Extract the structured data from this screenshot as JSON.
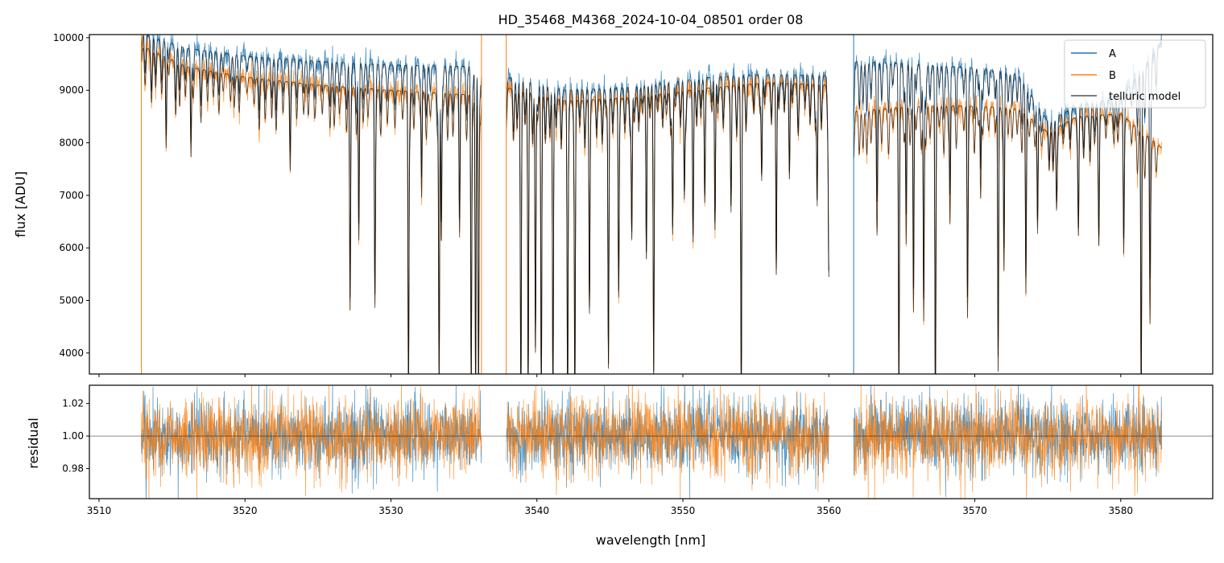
{
  "chart_data": {
    "type": "line",
    "title": "HD_35468_M4368_2024-10-04_08501  order 08",
    "xlabel": "wavelength [nm]",
    "xlim": [
      3509.34,
      3586.3
    ],
    "xticks": [
      3510,
      3520,
      3530,
      3540,
      3550,
      3560,
      3570,
      3580
    ],
    "panels": [
      {
        "name": "flux",
        "ylabel": "flux [ADU]",
        "ylim": [
          3600,
          10060
        ],
        "yticks": [
          4000,
          5000,
          6000,
          7000,
          8000,
          9000,
          10000
        ]
      },
      {
        "name": "residual",
        "ylabel": "residual",
        "ylim": [
          0.9615,
          1.0312
        ],
        "yticks": [
          0.98,
          1.0,
          1.02
        ],
        "ytick_labels": [
          "0.98",
          "1.00",
          "1.02"
        ],
        "reference_line": 1.0
      }
    ],
    "legend": {
      "placement": "top-right",
      "entries": [
        "A",
        "B",
        "telluric model"
      ]
    },
    "colors": {
      "A": "#1f77b4",
      "B": "#ff7f0e",
      "model": "#000000"
    },
    "segments": [
      [
        3512.9,
        3536.2
      ],
      [
        3537.9,
        3560.0
      ],
      [
        3561.7,
        3582.8
      ]
    ],
    "continuum_A": [
      [
        [
          3512.9,
          10080
        ],
        [
          3516,
          9800
        ],
        [
          3520,
          9650
        ],
        [
          3525,
          9550
        ],
        [
          3530,
          9480
        ],
        [
          3536.2,
          9450
        ]
      ],
      [
        [
          3537.9,
          9250
        ],
        [
          3542,
          9000
        ],
        [
          3546,
          9050
        ],
        [
          3552,
          9250
        ],
        [
          3556,
          9300
        ],
        [
          3560,
          9280
        ]
      ],
      [
        [
          3561.7,
          9550
        ],
        [
          3566,
          9500
        ],
        [
          3570,
          9420
        ],
        [
          3573,
          9300
        ],
        [
          3575,
          8400
        ],
        [
          3577,
          8700
        ],
        [
          3580,
          8850
        ],
        [
          3582.8,
          9900
        ]
      ]
    ],
    "continuum_B": [
      [
        [
          3512.9,
          9850
        ],
        [
          3516,
          9450
        ],
        [
          3520,
          9250
        ],
        [
          3525,
          9100
        ],
        [
          3530,
          9000
        ],
        [
          3536.2,
          8900
        ]
      ],
      [
        [
          3537.9,
          9050
        ],
        [
          3542,
          8800
        ],
        [
          3546,
          8850
        ],
        [
          3552,
          9050
        ],
        [
          3556,
          9150
        ],
        [
          3560,
          9100
        ]
      ],
      [
        [
          3561.7,
          8600
        ],
        [
          3566,
          8700
        ],
        [
          3570,
          8700
        ],
        [
          3573,
          8650
        ],
        [
          3575,
          8200
        ],
        [
          3577,
          8500
        ],
        [
          3580,
          8550
        ],
        [
          3582.8,
          7900
        ]
      ]
    ],
    "absorption_lines": [
      [
        3514.6,
        0.18
      ],
      [
        3516.3,
        0.18
      ],
      [
        3523.1,
        0.14
      ],
      [
        3527.2,
        0.46
      ],
      [
        3527.8,
        0.32
      ],
      [
        3528.9,
        0.42
      ],
      [
        3531.2,
        0.65
      ],
      [
        3532.1,
        0.22
      ],
      [
        3533.3,
        0.62
      ],
      [
        3533.45,
        0.32
      ],
      [
        3534.7,
        0.28
      ],
      [
        3535.5,
        0.65
      ],
      [
        3535.8,
        0.65
      ],
      [
        3536.0,
        0.65
      ],
      [
        3538.9,
        0.65
      ],
      [
        3539.4,
        0.65
      ],
      [
        3539.9,
        0.55
      ],
      [
        3540.3,
        0.65
      ],
      [
        3541.1,
        0.65
      ],
      [
        3542.1,
        0.65
      ],
      [
        3542.6,
        0.65
      ],
      [
        3543.6,
        0.45
      ],
      [
        3544.9,
        0.58
      ],
      [
        3545.6,
        0.4
      ],
      [
        3546.5,
        0.3
      ],
      [
        3547.5,
        0.35
      ],
      [
        3548.0,
        0.6
      ],
      [
        3549.3,
        0.3
      ],
      [
        3550.1,
        0.22
      ],
      [
        3550.7,
        0.3
      ],
      [
        3551.5,
        0.2
      ],
      [
        3552.2,
        0.3
      ],
      [
        3553.3,
        0.25
      ],
      [
        3554.0,
        0.65
      ],
      [
        3555.4,
        0.2
      ],
      [
        3556.4,
        0.4
      ],
      [
        3557.3,
        0.2
      ],
      [
        3559.2,
        0.25
      ],
      [
        3560.0,
        0.38
      ],
      [
        3563.3,
        0.2
      ],
      [
        3564.8,
        0.62
      ],
      [
        3565.3,
        0.3
      ],
      [
        3565.8,
        0.45
      ],
      [
        3566.5,
        0.47
      ],
      [
        3567.3,
        0.65
      ],
      [
        3568.3,
        0.25
      ],
      [
        3569.5,
        0.42
      ],
      [
        3570.4,
        0.2
      ],
      [
        3571.6,
        0.58
      ],
      [
        3572.0,
        0.35
      ],
      [
        3573.5,
        0.4
      ],
      [
        3574.3,
        0.25
      ],
      [
        3575.6,
        0.15
      ],
      [
        3577.1,
        0.25
      ],
      [
        3578.5,
        0.24
      ],
      [
        3580.2,
        0.28
      ],
      [
        3581.4,
        0.65
      ],
      [
        3582.0,
        0.4
      ]
    ],
    "spikes": [
      {
        "series": "B",
        "x": 3512.9
      },
      {
        "series": "B",
        "x": 3536.2
      },
      {
        "series": "B",
        "x": 3537.9
      },
      {
        "series": "A",
        "x": 3561.7
      }
    ],
    "noise_std": {
      "A": 0.011,
      "B": 0.012
    }
  }
}
